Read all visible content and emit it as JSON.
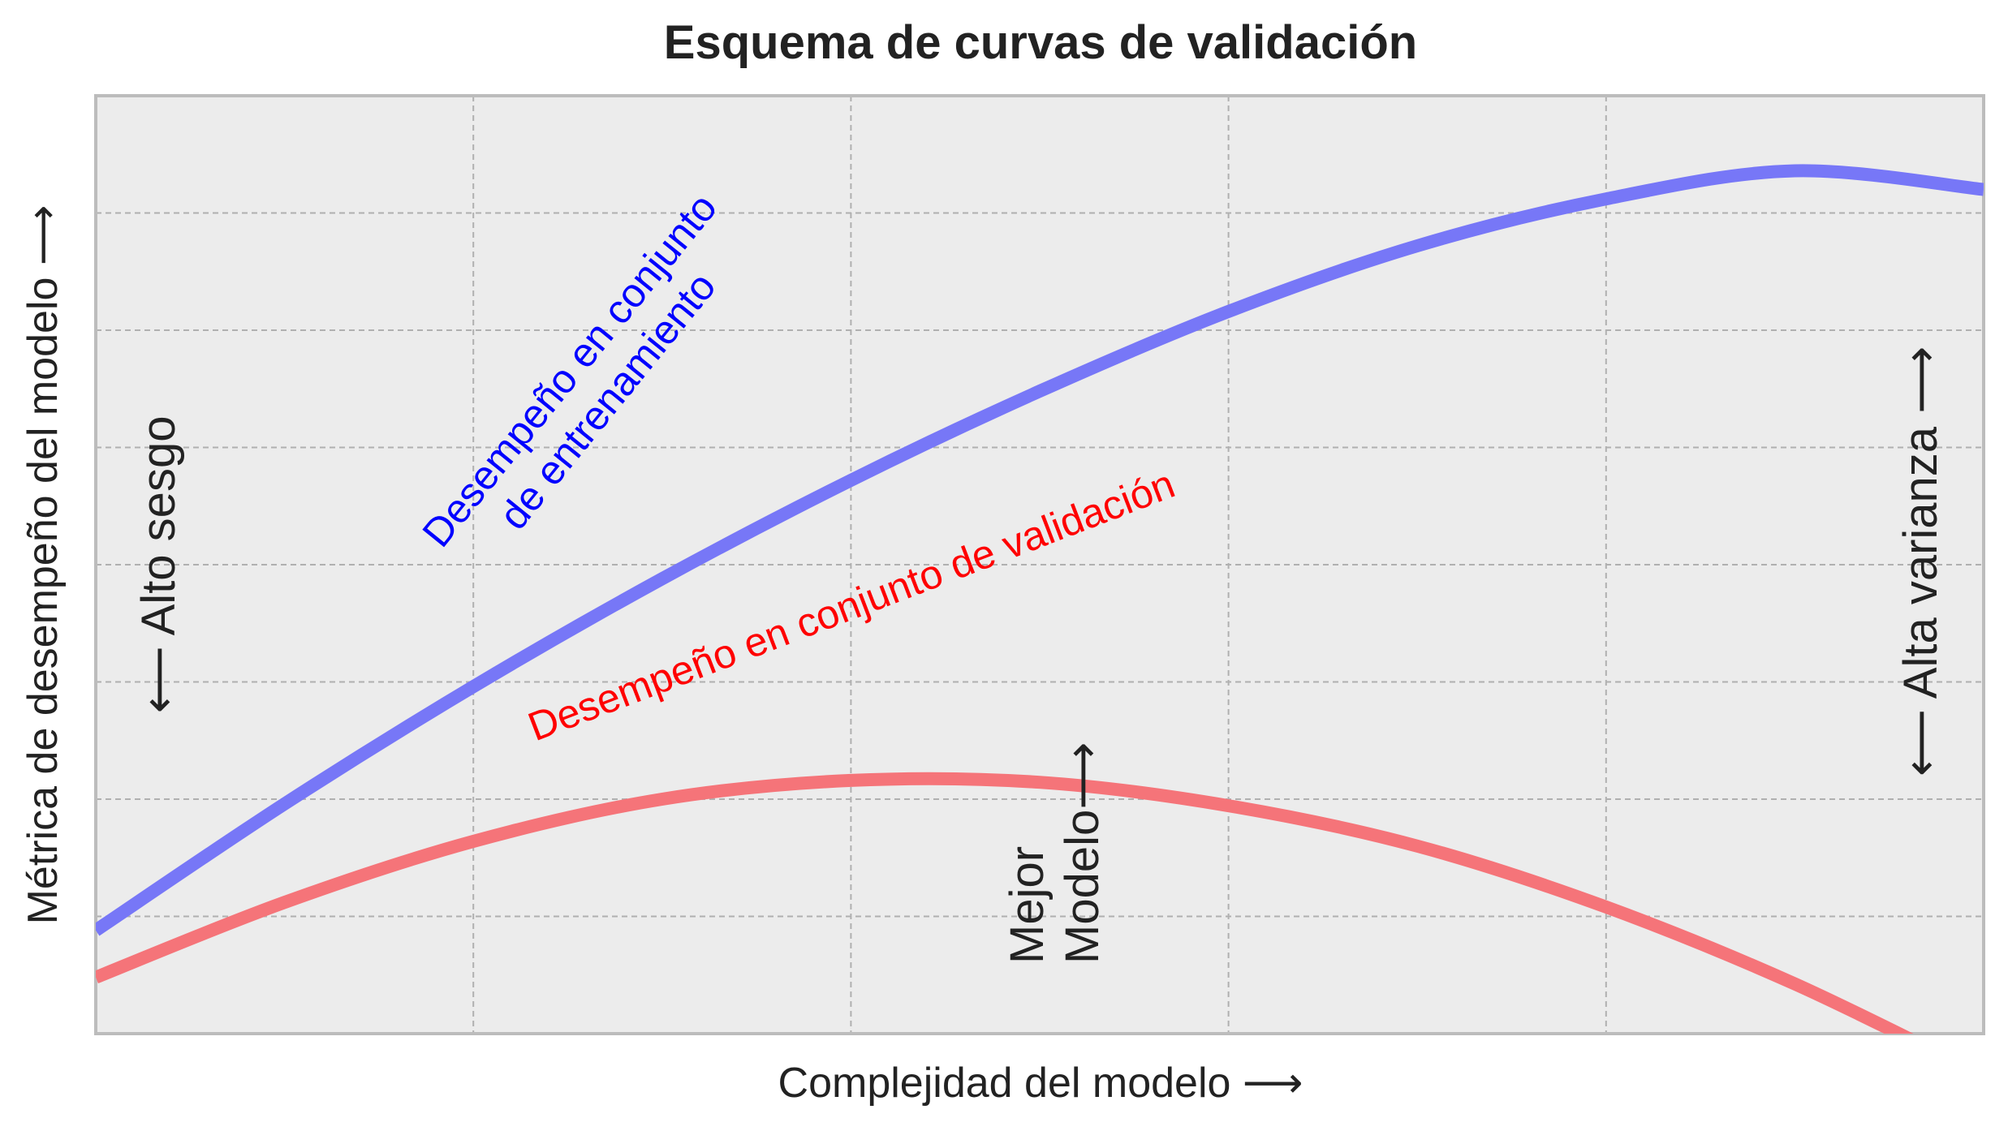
{
  "chart_data": {
    "type": "line",
    "title": "Esquema de curvas de validación",
    "xlabel": "Complejidad del modelo  ⟶",
    "ylabel": "Métrica de desempeño del modelo  ⟶",
    "xlim": [
      0,
      1
    ],
    "ylim": [
      0,
      1
    ],
    "grid": true,
    "ticks_labeled": false,
    "series": [
      {
        "name": "Desempeño en conjunto de entrenamiento",
        "color": "#0000ff",
        "x": [
          0.0,
          0.1,
          0.2,
          0.3,
          0.4,
          0.5,
          0.6,
          0.7,
          0.8,
          0.9,
          1.0
        ],
        "y": [
          0.11,
          0.245,
          0.37,
          0.485,
          0.59,
          0.685,
          0.77,
          0.84,
          0.89,
          0.92,
          0.9
        ]
      },
      {
        "name": "Desempeño en conjunto de validación",
        "color": "#ff0000",
        "x": [
          0.0,
          0.1,
          0.2,
          0.3,
          0.4,
          0.5,
          0.6,
          0.7,
          0.8,
          0.9,
          1.0
        ],
        "y": [
          0.06,
          0.14,
          0.205,
          0.25,
          0.27,
          0.268,
          0.243,
          0.2,
          0.135,
          0.053,
          -0.045
        ]
      }
    ],
    "annotations": {
      "train_label_line1": "Desempeño en conjunto",
      "train_label_line2": "de entrenamiento",
      "val_label": "Desempeño en conjunto de validación",
      "high_bias": "⟵  Alto sesgo",
      "high_variance": "⟵  Alta varianza  ⟶",
      "best_model_line1": "Mejor",
      "best_model_line2": "Modelo⟶"
    },
    "colors": {
      "plot_background": "#ececec",
      "grid": "#b0b0b0",
      "frame": "#bcbcbc",
      "train_line": "#7777f7",
      "val_line": "#f57479",
      "train_text": "#0000ff",
      "val_text": "#ff0000",
      "text": "#222222"
    }
  }
}
